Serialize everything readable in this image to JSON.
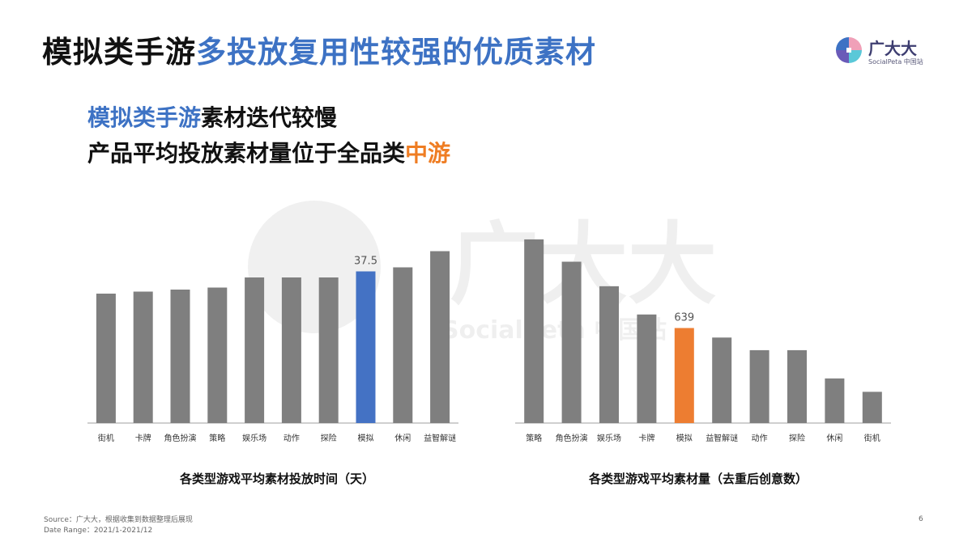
{
  "title": {
    "part1": "模拟类手游",
    "part2": "多投放复用性较强的优质素材"
  },
  "logo": {
    "name": "广大大",
    "sub": "SocialPeta 中国站"
  },
  "subtitle": {
    "line1_blue": "模拟类手游",
    "line1_black": "素材迭代较慢",
    "line2_black": "产品平均投放素材量位于全品类",
    "line2_orange": "中游"
  },
  "watermark": {
    "big": "广大大",
    "small": "SocialPeta 中国站"
  },
  "colors": {
    "bar": "#7f7f7f",
    "highlight_left": "#4472c4",
    "highlight_right": "#ed7d31",
    "axis": "#bfbfbf",
    "title_blue": "#3d72c4"
  },
  "chart_data": [
    {
      "type": "bar",
      "title": "各类型游戏平均素材投放时间（天）",
      "categories": [
        "街机",
        "卡牌",
        "角色扮演",
        "策略",
        "娱乐场",
        "动作",
        "探险",
        "模拟",
        "休闲",
        "益智解谜"
      ],
      "values": [
        32,
        32.5,
        33,
        33.5,
        36,
        36,
        36,
        37.5,
        38.5,
        42.5
      ],
      "highlight_index": 7,
      "data_labels": {
        "7": "37.5"
      },
      "ylim": [
        0,
        45
      ],
      "grid": false
    },
    {
      "type": "bar",
      "title": "各类型游戏平均素材量（去重后创意数）",
      "categories": [
        "策略",
        "角色扮演",
        "娱乐场",
        "卡牌",
        "模拟",
        "益智解谜",
        "动作",
        "探险",
        "休闲",
        "街机"
      ],
      "values": [
        1235,
        1085,
        920,
        730,
        639,
        575,
        490,
        490,
        300,
        210
      ],
      "highlight_index": 4,
      "data_labels": {
        "4": "639"
      },
      "ylim": [
        0,
        1300
      ],
      "grid": false
    }
  ],
  "footer": {
    "source": "Source：广大大，根据收集到数据整理后展现",
    "date_range": "Date Range：2021/1-2021/12",
    "page": "6"
  }
}
